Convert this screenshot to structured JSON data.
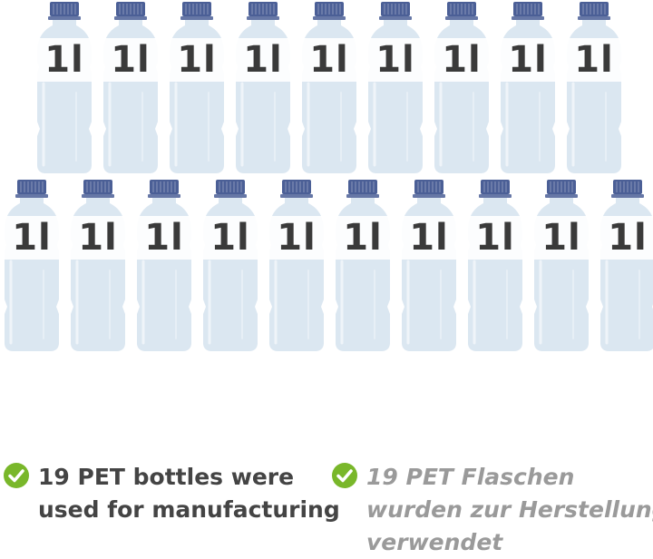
{
  "bottles": {
    "label": "1l",
    "row1_count": 9,
    "row2_count": 10,
    "colors": {
      "body": "#dbe7f1",
      "cap": "#4b5f96",
      "label": "#ffffff",
      "text": "#3a3a3a"
    }
  },
  "captions": {
    "check_color": "#79b72a",
    "en": {
      "line1": "19 PET bottles were",
      "line2": "used for manufacturing"
    },
    "de": {
      "line1": "19 PET Flaschen",
      "line2": "wurden zur Herstellung",
      "line3": "verwendet"
    }
  }
}
